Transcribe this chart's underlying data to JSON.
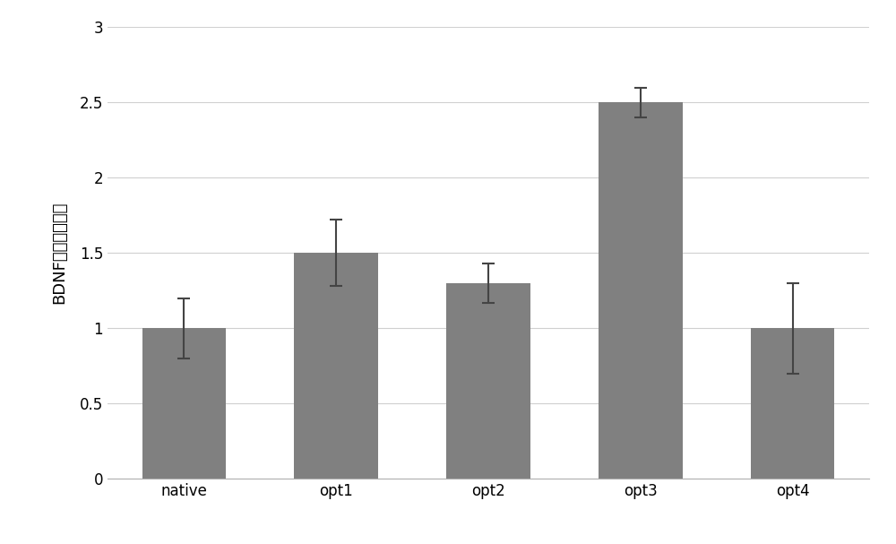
{
  "categories": [
    "native",
    "opt1",
    "opt2",
    "opt3",
    "opt4"
  ],
  "values": [
    1.0,
    1.5,
    1.3,
    2.5,
    1.0
  ],
  "errors": [
    0.2,
    0.22,
    0.13,
    0.1,
    0.3
  ],
  "bar_color": "#808080",
  "bar_edge_color": "#808080",
  "ylabel": "BDNF相对表达水平",
  "ylim": [
    0,
    3
  ],
  "yticks": [
    0,
    0.5,
    1,
    1.5,
    2,
    2.5,
    3
  ],
  "ytick_labels": [
    "0",
    "0.5",
    "1",
    "1.5",
    "2",
    "2.5",
    "3"
  ],
  "background_color": "#ffffff",
  "grid_color": "#d0d0d0",
  "bar_width": 0.55,
  "ylabel_fontsize": 13,
  "tick_fontsize": 12
}
